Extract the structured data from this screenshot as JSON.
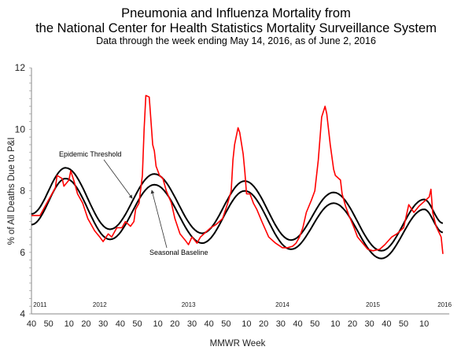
{
  "chart_data": {
    "type": "line",
    "title": "Pneumonia and Influenza Mortality from",
    "title_line2": "the National Center for Health Statistics Mortality Surveillance System",
    "subtitle": "Data through the week ending May 14, 2016, as of June 2, 2016",
    "xlabel": "MMWR Week",
    "ylabel": "% of All Deaths Due to P&I",
    "ylim": [
      4,
      12
    ],
    "yticks": [
      4,
      6,
      8,
      10,
      12
    ],
    "xlim": [
      "2011-40",
      "2016-22"
    ],
    "grid": false,
    "xticks": [
      {
        "label": "40",
        "x": "2011-40"
      },
      {
        "label": "50",
        "x": "2011-50"
      },
      {
        "label": "10",
        "x": "2012-10"
      },
      {
        "label": "20",
        "x": "2012-20"
      },
      {
        "label": "30",
        "x": "2012-30"
      },
      {
        "label": "40",
        "x": "2012-40"
      },
      {
        "label": "50",
        "x": "2012-50"
      },
      {
        "label": "10",
        "x": "2013-10"
      },
      {
        "label": "20",
        "x": "2013-20"
      },
      {
        "label": "30",
        "x": "2013-30"
      },
      {
        "label": "40",
        "x": "2013-40"
      },
      {
        "label": "50",
        "x": "2013-50"
      },
      {
        "label": "10",
        "x": "2014-10"
      },
      {
        "label": "20",
        "x": "2014-20"
      },
      {
        "label": "30",
        "x": "2014-30"
      },
      {
        "label": "40",
        "x": "2014-40"
      },
      {
        "label": "50",
        "x": "2014-50"
      },
      {
        "label": "10",
        "x": "2015-10"
      },
      {
        "label": "20",
        "x": "2015-20"
      },
      {
        "label": "30",
        "x": "2015-30"
      },
      {
        "label": "40",
        "x": "2015-40"
      },
      {
        "label": "50",
        "x": "2015-50"
      },
      {
        "label": "10",
        "x": "2016-10"
      }
    ],
    "year_labels": [
      {
        "label": "2011",
        "x": "2011-45"
      },
      {
        "label": "2012",
        "x": "2012-28"
      },
      {
        "label": "2013",
        "x": "2013-28"
      },
      {
        "label": "2014",
        "x": "2014-31"
      },
      {
        "label": "2015",
        "x": "2015-32"
      },
      {
        "label": "2016",
        "x": "2016-22"
      }
    ],
    "annotations": [
      {
        "text": "Epidemic Threshold",
        "series": "threshold"
      },
      {
        "text": "Seasonal Baseline",
        "series": "baseline"
      }
    ],
    "series": [
      {
        "name": "Epidemic Threshold",
        "key": "threshold",
        "color": "#000000",
        "smooth": true,
        "points": [
          [
            "2011-40",
            7.25
          ],
          [
            "2012-08",
            8.75
          ],
          [
            "2012-34",
            6.75
          ],
          [
            "2013-08",
            8.55
          ],
          [
            "2013-36",
            6.62
          ],
          [
            "2014-09",
            8.32
          ],
          [
            "2014-36",
            6.4
          ],
          [
            "2015-09",
            7.95
          ],
          [
            "2015-37",
            6.05
          ],
          [
            "2016-10",
            7.72
          ],
          [
            "2016-21",
            6.95
          ]
        ]
      },
      {
        "name": "Seasonal Baseline",
        "key": "baseline",
        "color": "#000000",
        "smooth": true,
        "points": [
          [
            "2011-40",
            6.9
          ],
          [
            "2012-08",
            8.4
          ],
          [
            "2012-34",
            6.42
          ],
          [
            "2013-08",
            8.2
          ],
          [
            "2013-36",
            6.3
          ],
          [
            "2014-09",
            8.0
          ],
          [
            "2014-36",
            6.1
          ],
          [
            "2015-09",
            7.6
          ],
          [
            "2015-37",
            5.8
          ],
          [
            "2016-10",
            7.4
          ],
          [
            "2016-21",
            6.65
          ]
        ]
      },
      {
        "key": "observed",
        "color": "#ff0000",
        "smooth": false,
        "points": [
          [
            "2011-40",
            7.2
          ],
          [
            "2011-45",
            7.2
          ],
          [
            "2011-49",
            7.6
          ],
          [
            "2012-02",
            8.1
          ],
          [
            "2012-03",
            8.5
          ],
          [
            "2012-06",
            8.4
          ],
          [
            "2012-07",
            8.15
          ],
          [
            "2012-10",
            8.35
          ],
          [
            "2012-11",
            8.65
          ],
          [
            "2012-13",
            8.3
          ],
          [
            "2012-15",
            7.9
          ],
          [
            "2012-18",
            7.6
          ],
          [
            "2012-21",
            7.1
          ],
          [
            "2012-23",
            6.9
          ],
          [
            "2012-25",
            6.7
          ],
          [
            "2012-28",
            6.5
          ],
          [
            "2012-30",
            6.35
          ],
          [
            "2012-33",
            6.6
          ],
          [
            "2012-35",
            6.5
          ],
          [
            "2012-38",
            6.8
          ],
          [
            "2012-41",
            6.8
          ],
          [
            "2012-43",
            7.0
          ],
          [
            "2012-46",
            6.85
          ],
          [
            "2012-48",
            7.0
          ],
          [
            "2012-49",
            7.4
          ],
          [
            "2012-51",
            7.6
          ],
          [
            "2013-01",
            8.5
          ],
          [
            "2013-02",
            10.0
          ],
          [
            "2013-03",
            11.1
          ],
          [
            "2013-05",
            11.05
          ],
          [
            "2013-07",
            9.5
          ],
          [
            "2013-08",
            9.3
          ],
          [
            "2013-09",
            8.8
          ],
          [
            "2013-11",
            8.5
          ],
          [
            "2013-13",
            8.4
          ],
          [
            "2013-15",
            8.0
          ],
          [
            "2013-18",
            7.6
          ],
          [
            "2013-20",
            7.1
          ],
          [
            "2013-23",
            6.6
          ],
          [
            "2013-26",
            6.4
          ],
          [
            "2013-28",
            6.25
          ],
          [
            "2013-30",
            6.5
          ],
          [
            "2013-33",
            6.3
          ],
          [
            "2013-35",
            6.5
          ],
          [
            "2013-37",
            6.6
          ],
          [
            "2013-41",
            6.8
          ],
          [
            "2013-44",
            6.9
          ],
          [
            "2013-48",
            7.1
          ],
          [
            "2013-51",
            7.6
          ],
          [
            "2014-01",
            8.0
          ],
          [
            "2014-02",
            9.0
          ],
          [
            "2014-03",
            9.5
          ],
          [
            "2014-05",
            10.05
          ],
          [
            "2014-06",
            9.9
          ],
          [
            "2014-08",
            9.2
          ],
          [
            "2014-09",
            8.6
          ],
          [
            "2014-10",
            7.9
          ],
          [
            "2014-12",
            7.9
          ],
          [
            "2014-14",
            7.6
          ],
          [
            "2014-16",
            7.4
          ],
          [
            "2014-19",
            7.0
          ],
          [
            "2014-23",
            6.5
          ],
          [
            "2014-27",
            6.3
          ],
          [
            "2014-31",
            6.15
          ],
          [
            "2014-34",
            6.15
          ],
          [
            "2014-37",
            6.2
          ],
          [
            "2014-39",
            6.3
          ],
          [
            "2014-41",
            6.5
          ],
          [
            "2014-43",
            6.8
          ],
          [
            "2014-45",
            7.3
          ],
          [
            "2014-48",
            7.7
          ],
          [
            "2014-50",
            8.0
          ],
          [
            "2014-52",
            9.0
          ],
          [
            "2015-02",
            10.4
          ],
          [
            "2015-04",
            10.75
          ],
          [
            "2015-05",
            10.5
          ],
          [
            "2015-07",
            9.5
          ],
          [
            "2015-09",
            8.7
          ],
          [
            "2015-10",
            8.5
          ],
          [
            "2015-13",
            8.35
          ],
          [
            "2015-14",
            7.9
          ],
          [
            "2015-16",
            7.5
          ],
          [
            "2015-18",
            7.2
          ],
          [
            "2015-21",
            6.8
          ],
          [
            "2015-23",
            6.5
          ],
          [
            "2015-26",
            6.3
          ],
          [
            "2015-29",
            6.1
          ],
          [
            "2015-32",
            6.05
          ],
          [
            "2015-36",
            6.1
          ],
          [
            "2015-39",
            6.25
          ],
          [
            "2015-43",
            6.5
          ],
          [
            "2015-46",
            6.6
          ],
          [
            "2015-50",
            6.8
          ],
          [
            "2016-01",
            7.55
          ],
          [
            "2016-04",
            7.3
          ],
          [
            "2016-07",
            7.5
          ],
          [
            "2016-09",
            7.6
          ],
          [
            "2016-13",
            7.8
          ],
          [
            "2016-14",
            8.05
          ],
          [
            "2016-15",
            7.3
          ],
          [
            "2016-17",
            6.85
          ],
          [
            "2016-20",
            6.5
          ],
          [
            "2016-21",
            5.95
          ]
        ]
      }
    ]
  }
}
